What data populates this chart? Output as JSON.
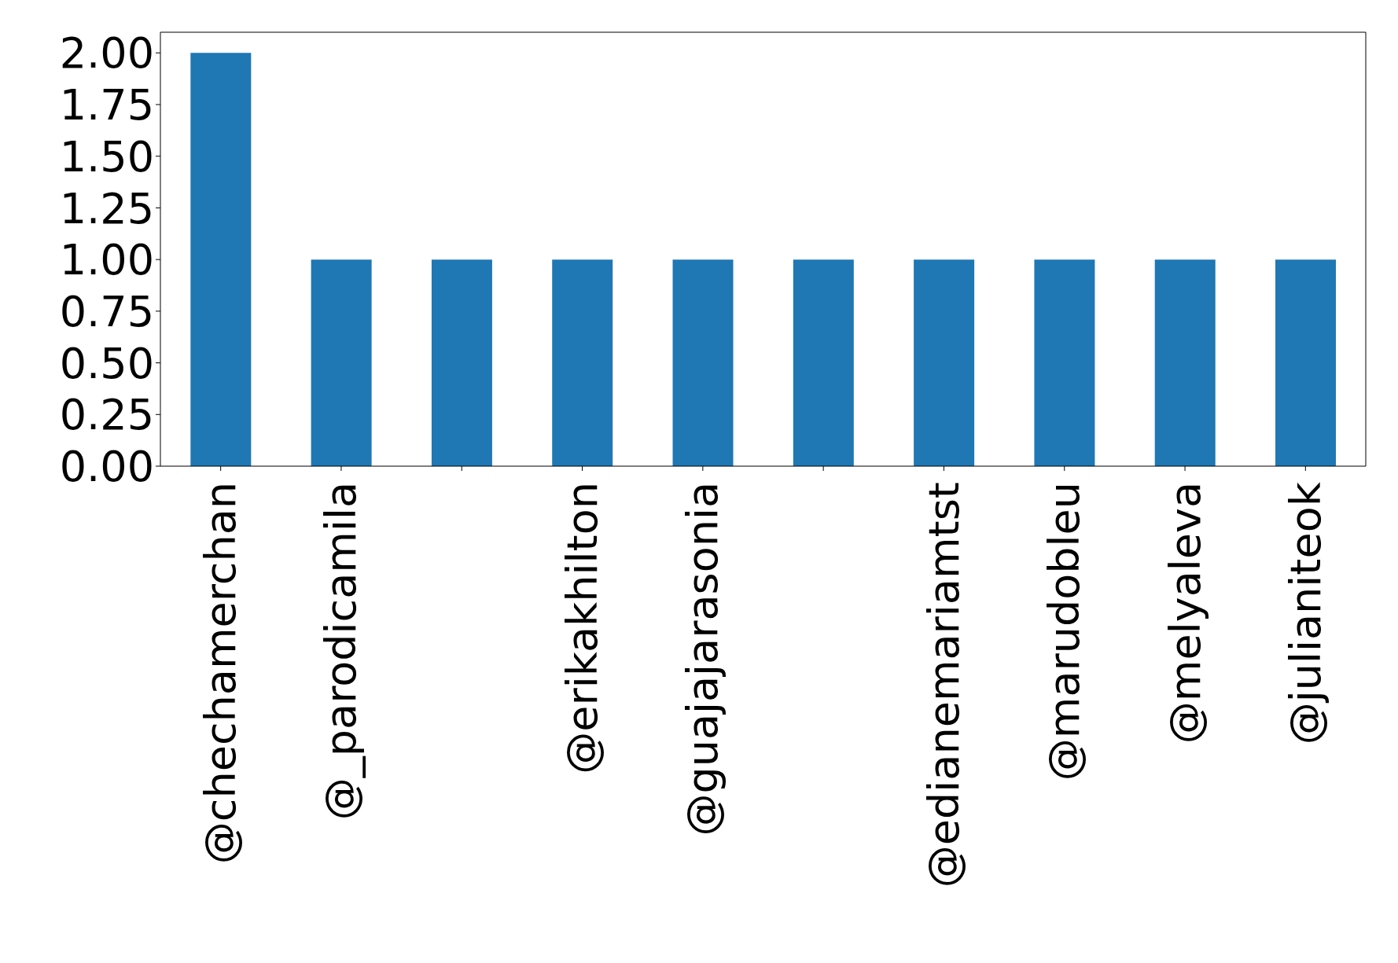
{
  "chart_data": {
    "type": "bar",
    "categories": [
      "@chechamerchan",
      "@_parodicamila",
      null,
      "@erikakhilton",
      "@guajajarasonia",
      null,
      "@edianemariamtst",
      "@marudobleu",
      "@melyaleva",
      "@julianiteok"
    ],
    "values": [
      2,
      1,
      1,
      1,
      1,
      1,
      1,
      1,
      1,
      1
    ],
    "color": "#1f77b4",
    "ylim": [
      0,
      2.1
    ],
    "yticks": [
      {
        "value": 0,
        "label": "0.00"
      },
      {
        "value": 0.25,
        "label": "0.25"
      },
      {
        "value": 0.5,
        "label": "0.50"
      },
      {
        "value": 0.75,
        "label": "0.75"
      },
      {
        "value": 1,
        "label": "1.00"
      },
      {
        "value": 1.25,
        "label": "1.25"
      },
      {
        "value": 1.5,
        "label": "1.50"
      },
      {
        "value": 1.75,
        "label": "1.75"
      },
      {
        "value": 2,
        "label": "2.00"
      }
    ],
    "grid": false
  }
}
